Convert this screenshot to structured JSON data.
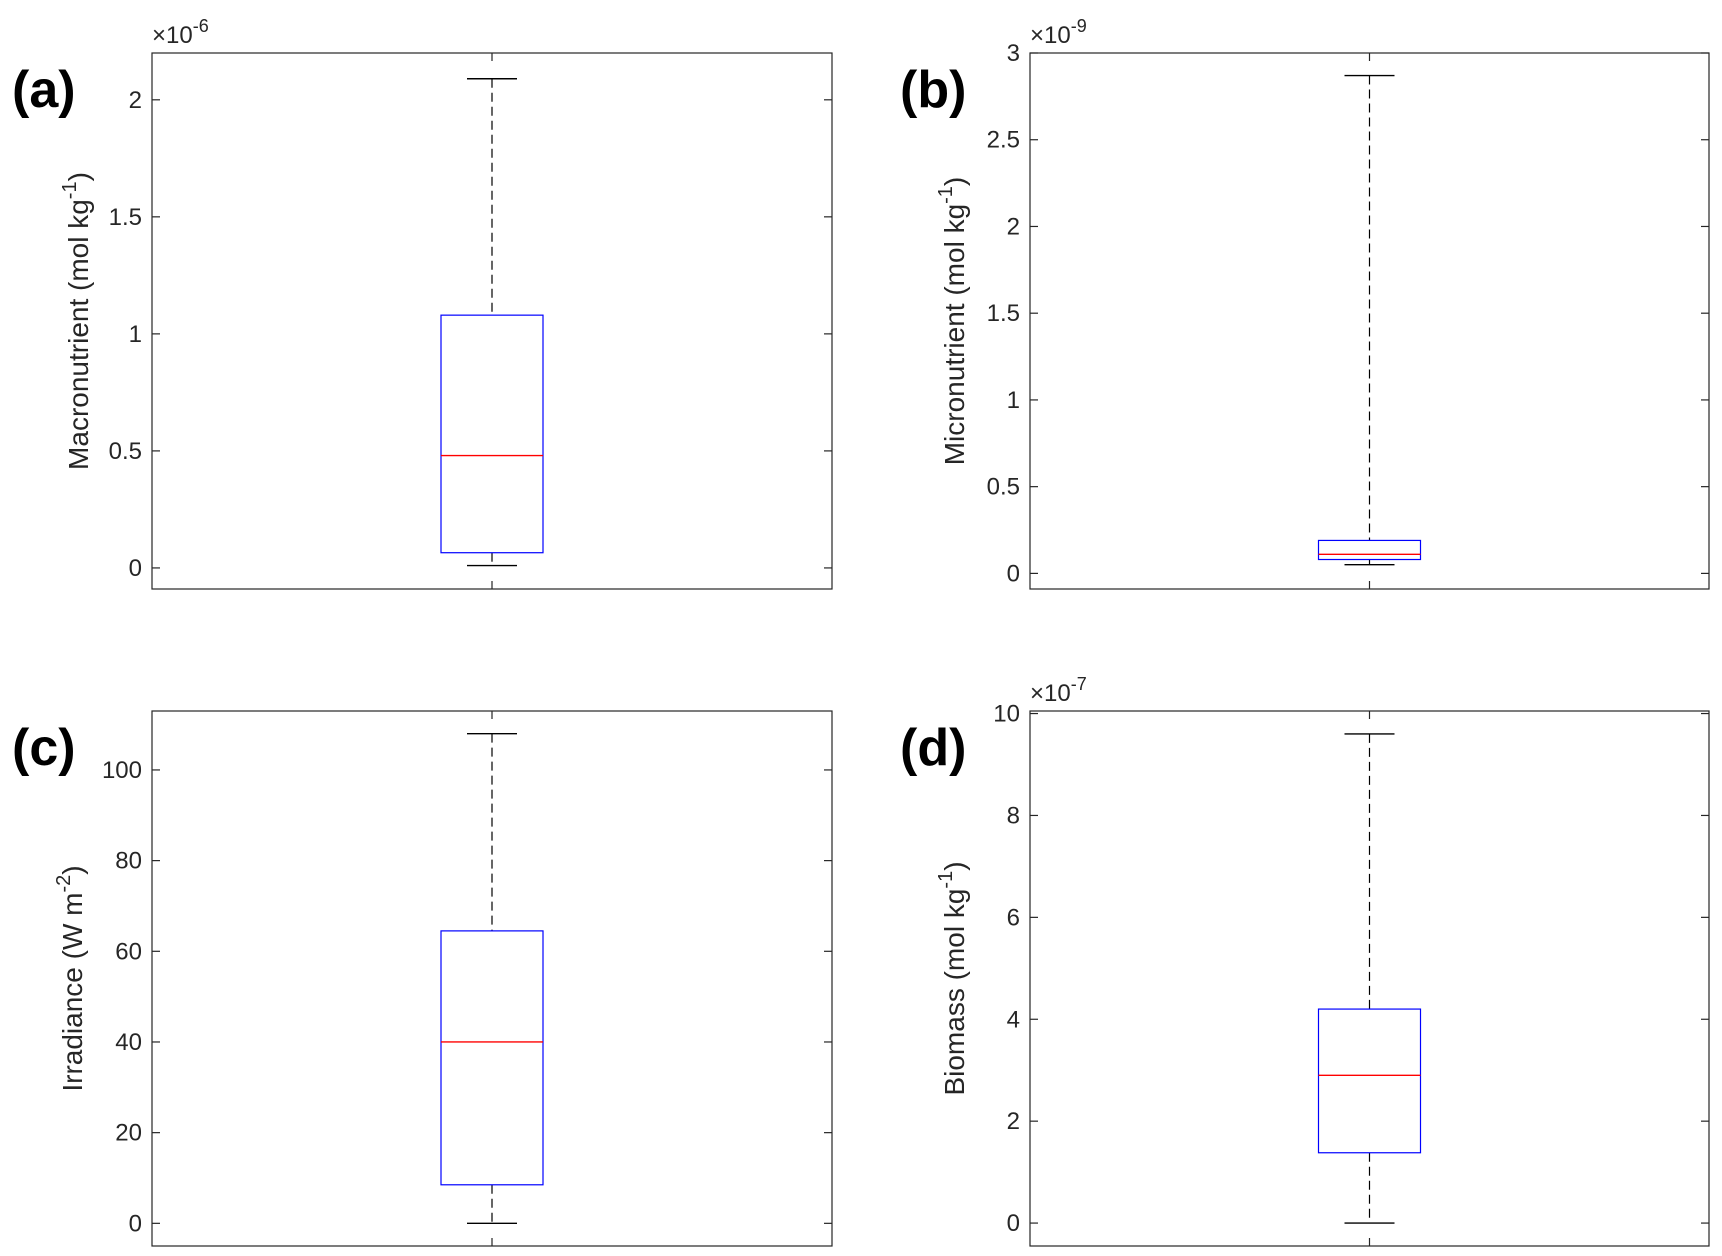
{
  "figure": {
    "background": "#ffffff",
    "colors": {
      "box": "#0000ff",
      "median": "#ff0000",
      "whisker": "#000000",
      "axis": "#262626"
    }
  },
  "chart_data": [
    {
      "type": "box",
      "panel_label": "(a)",
      "ylabel": "Macronutrient (mol kg",
      "ylabel_exp": "-1",
      "ylabel_close": ")",
      "exponent_base": "×10",
      "exponent_power": "-6",
      "ylim": [
        -0.09,
        2.2
      ],
      "yticks": [
        0,
        0.5,
        1,
        1.5,
        2
      ],
      "ytick_labels": [
        "0",
        "0.5",
        "1",
        "1.5",
        "2"
      ],
      "box": {
        "whisker_low": 0.01,
        "q1": 0.065,
        "median": 0.48,
        "q3": 1.08,
        "whisker_high": 2.09
      }
    },
    {
      "type": "box",
      "panel_label": "(b)",
      "ylabel": "Micronutrient (mol kg",
      "ylabel_exp": "-1",
      "ylabel_close": ")",
      "exponent_base": "×10",
      "exponent_power": "-9",
      "ylim": [
        -0.09,
        3.0
      ],
      "yticks": [
        0,
        0.5,
        1,
        1.5,
        2,
        2.5,
        3
      ],
      "ytick_labels": [
        "0",
        "0.5",
        "1",
        "1.5",
        "2",
        "2.5",
        "3"
      ],
      "box": {
        "whisker_low": 0.05,
        "q1": 0.08,
        "median": 0.11,
        "q3": 0.19,
        "whisker_high": 2.87
      }
    },
    {
      "type": "box",
      "panel_label": "(c)",
      "ylabel": "Irradiance (W m",
      "ylabel_exp": "-2",
      "ylabel_close": ")",
      "exponent_base": "",
      "exponent_power": "",
      "ylim": [
        -5,
        113
      ],
      "yticks": [
        0,
        20,
        40,
        60,
        80,
        100
      ],
      "ytick_labels": [
        "0",
        "20",
        "40",
        "60",
        "80",
        "100"
      ],
      "box": {
        "whisker_low": 0,
        "q1": 8.5,
        "median": 40,
        "q3": 64.5,
        "whisker_high": 108
      }
    },
    {
      "type": "box",
      "panel_label": "(d)",
      "ylabel": "Biomass (mol kg",
      "ylabel_exp": "-1",
      "ylabel_close": ")",
      "exponent_base": "×10",
      "exponent_power": "-7",
      "ylim": [
        -0.45,
        10.05
      ],
      "yticks": [
        0,
        2,
        4,
        6,
        8,
        10
      ],
      "ytick_labels": [
        "0",
        "2",
        "4",
        "6",
        "8",
        "10"
      ],
      "box": {
        "whisker_low": 0,
        "q1": 1.38,
        "median": 2.9,
        "q3": 4.2,
        "whisker_high": 9.6
      }
    }
  ]
}
